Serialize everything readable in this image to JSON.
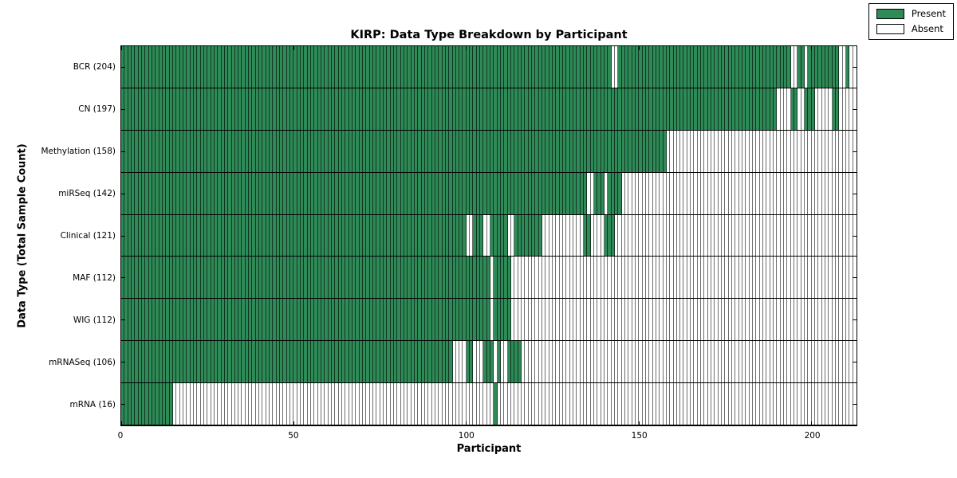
{
  "chart_data": {
    "type": "heatmap",
    "title": "KIRP: Data Type Breakdown by Participant",
    "xlabel": "Participant",
    "ylabel": "Data Type (Total Sample Count)",
    "x_tick_values": [
      0,
      50,
      100,
      150,
      200
    ],
    "x_tick_labels": [
      "0",
      "50",
      "100",
      "150",
      "200"
    ],
    "x_max": 213,
    "grid": false,
    "legend_position": "top-right",
    "colors": {
      "present": "#2e8b57",
      "absent": "#ffffff",
      "cell_border_absent": "#6e6e6e",
      "axis": "#000000"
    },
    "legend": {
      "entries": [
        {
          "label": "Present",
          "color": "#2e8b57"
        },
        {
          "label": "Absent",
          "color": "#ffffff"
        }
      ]
    },
    "rows": [
      {
        "label": "BCR (204)",
        "data_type": "BCR",
        "sample_count": 204,
        "present_ranges": [
          [
            0,
            142
          ],
          [
            144,
            194
          ],
          [
            196,
            198
          ],
          [
            199,
            208
          ],
          [
            210,
            211
          ]
        ]
      },
      {
        "label": "CN (197)",
        "data_type": "CN",
        "sample_count": 197,
        "present_ranges": [
          [
            0,
            190
          ],
          [
            194,
            196
          ],
          [
            198,
            201
          ],
          [
            206,
            208
          ]
        ]
      },
      {
        "label": "Methylation (158)",
        "data_type": "Methylation",
        "sample_count": 158,
        "present_ranges": [
          [
            0,
            158
          ]
        ]
      },
      {
        "label": "miRSeq (142)",
        "data_type": "miRSeq",
        "sample_count": 142,
        "present_ranges": [
          [
            0,
            135
          ],
          [
            137,
            140
          ],
          [
            141,
            145
          ]
        ]
      },
      {
        "label": "Clinical (121)",
        "data_type": "Clinical",
        "sample_count": 121,
        "present_ranges": [
          [
            0,
            100
          ],
          [
            102,
            105
          ],
          [
            107,
            112
          ],
          [
            114,
            122
          ],
          [
            134,
            136
          ],
          [
            140,
            143
          ]
        ]
      },
      {
        "label": "MAF (112)",
        "data_type": "MAF",
        "sample_count": 112,
        "present_ranges": [
          [
            0,
            107
          ],
          [
            108,
            113
          ]
        ]
      },
      {
        "label": "WIG (112)",
        "data_type": "WIG",
        "sample_count": 112,
        "present_ranges": [
          [
            0,
            107
          ],
          [
            108,
            113
          ]
        ]
      },
      {
        "label": "mRNASeq (106)",
        "data_type": "mRNASeq",
        "sample_count": 106,
        "present_ranges": [
          [
            0,
            96
          ],
          [
            100,
            102
          ],
          [
            105,
            108
          ],
          [
            109,
            110
          ],
          [
            112,
            116
          ]
        ]
      },
      {
        "label": "mRNA (16)",
        "data_type": "mRNA",
        "sample_count": 16,
        "present_ranges": [
          [
            0,
            15
          ],
          [
            108,
            109
          ]
        ]
      }
    ]
  }
}
